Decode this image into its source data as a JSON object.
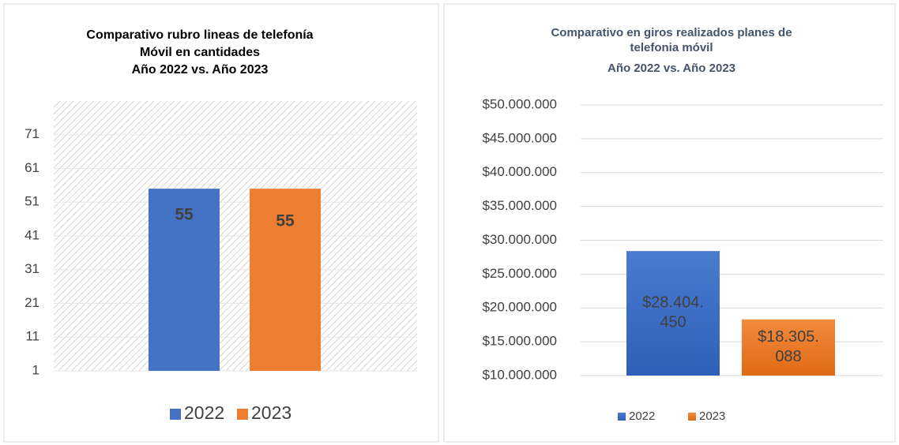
{
  "chart_data": [
    {
      "type": "bar",
      "title": [
        "Comparativo rubro lineas de telefonía",
        "Móvil en cantidades",
        "Año 2022 vs. Año 2023"
      ],
      "categories": [
        null
      ],
      "series": [
        {
          "name": "2022",
          "color": "#4472c4",
          "values": [
            55
          ]
        },
        {
          "name": "2023",
          "color": "#ed7d31",
          "values": [
            55
          ]
        }
      ],
      "ylim": [
        1,
        81
      ],
      "yticks": [
        1,
        11,
        21,
        31,
        41,
        51,
        61,
        71
      ],
      "grid": true,
      "legend": "bottom"
    },
    {
      "type": "bar",
      "title": [
        "Comparativo en giros realizados planes de",
        "telefonia móvil",
        "Año 2022 vs. Año 2023"
      ],
      "categories": [
        null
      ],
      "series": [
        {
          "name": "2022",
          "color": "#4472c4",
          "values": [
            28404450
          ],
          "value_labels": [
            "$28.404.450"
          ]
        },
        {
          "name": "2023",
          "color": "#ed7d31",
          "values": [
            18305088
          ],
          "value_labels": [
            "$18.305.088"
          ]
        }
      ],
      "ylim": [
        10000000,
        50000000
      ],
      "yticks": [
        {
          "value": 10000000,
          "label": "$10.000.000"
        },
        {
          "value": 15000000,
          "label": "$15.000.000"
        },
        {
          "value": 20000000,
          "label": "$20.000.000"
        },
        {
          "value": 25000000,
          "label": "$25.000.000"
        },
        {
          "value": 30000000,
          "label": "$30.000.000"
        },
        {
          "value": 35000000,
          "label": "$35.000.000"
        },
        {
          "value": 40000000,
          "label": "$40.000.000"
        },
        {
          "value": 45000000,
          "label": "$45.000.000"
        },
        {
          "value": 50000000,
          "label": "$50.000.000"
        }
      ],
      "grid": true,
      "legend": "bottom"
    }
  ]
}
